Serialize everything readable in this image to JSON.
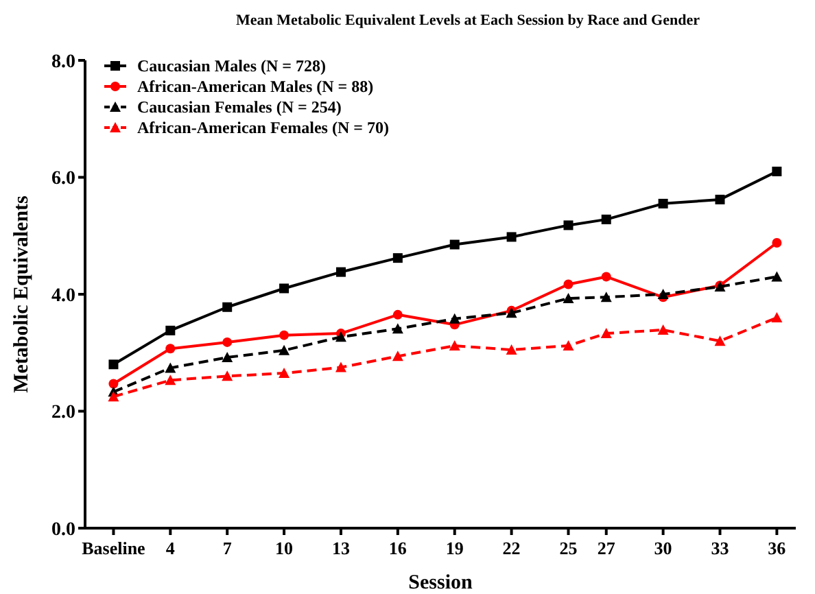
{
  "chart_data": {
    "type": "line",
    "title": "Mean Metabolic Equivalent Levels at Each Session by Race and Gender",
    "xlabel": "Session",
    "ylabel": "Metabolic Equivalents",
    "x": [
      1,
      4,
      7,
      10,
      13,
      16,
      19,
      22,
      25,
      27,
      30,
      33,
      36
    ],
    "xlim": [
      -0.5,
      37
    ],
    "xticks": [
      {
        "value": 1,
        "label": "Baseline"
      },
      4,
      7,
      10,
      13,
      16,
      19,
      22,
      25,
      27,
      30,
      33,
      36
    ],
    "ylim": [
      0,
      8
    ],
    "yticks": [
      {
        "value": 0,
        "label": "0.0"
      },
      {
        "value": 2,
        "label": "2.0"
      },
      {
        "value": 4,
        "label": "4.0"
      },
      {
        "value": 6,
        "label": "6.0"
      },
      {
        "value": 8,
        "label": "8.0"
      }
    ],
    "grid": false,
    "legend": "top left",
    "series": [
      {
        "name": "Caucasian Males (N = 728)",
        "color": "#000000",
        "marker": "square",
        "line_style": "solid",
        "values": [
          2.8,
          3.38,
          3.78,
          4.1,
          4.38,
          4.62,
          4.85,
          4.98,
          5.18,
          5.28,
          5.55,
          5.62,
          6.1
        ]
      },
      {
        "name": "African-American Males (N = 88)",
        "color": "#ff0000",
        "marker": "circle",
        "line_style": "solid",
        "values": [
          2.47,
          3.07,
          3.18,
          3.3,
          3.33,
          3.65,
          3.48,
          3.72,
          4.17,
          4.3,
          3.95,
          4.15,
          4.88
        ]
      },
      {
        "name": "Caucasian Females (N = 254)",
        "color": "#000000",
        "marker": "triangle",
        "line_style": "dashed",
        "values": [
          2.33,
          2.74,
          2.92,
          3.04,
          3.27,
          3.41,
          3.58,
          3.68,
          3.93,
          3.95,
          4.0,
          4.13,
          4.3
        ]
      },
      {
        "name": "African-American Females (N = 70)",
        "color": "#ff0000",
        "marker": "triangle",
        "line_style": "dashed",
        "values": [
          2.25,
          2.53,
          2.6,
          2.65,
          2.75,
          2.94,
          3.12,
          3.05,
          3.12,
          3.33,
          3.39,
          3.2,
          3.6
        ]
      }
    ]
  }
}
